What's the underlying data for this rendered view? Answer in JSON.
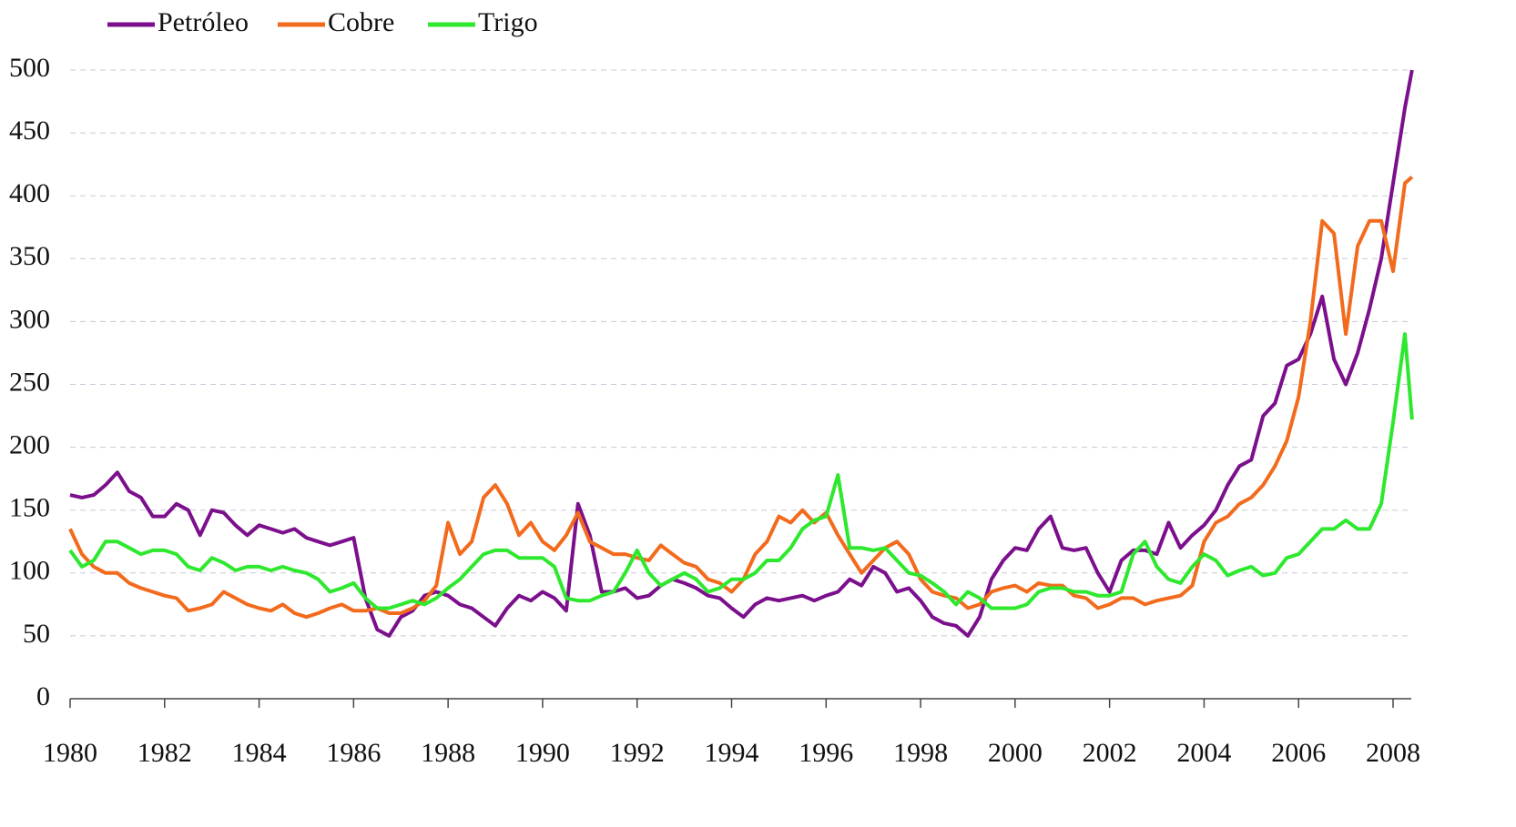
{
  "chart_data": {
    "type": "line",
    "x": [
      1980,
      1980.25,
      1980.5,
      1980.75,
      1981,
      1981.25,
      1981.5,
      1981.75,
      1982,
      1982.25,
      1982.5,
      1982.75,
      1983,
      1983.25,
      1983.5,
      1983.75,
      1984,
      1984.25,
      1984.5,
      1984.75,
      1985,
      1985.25,
      1985.5,
      1985.75,
      1986,
      1986.25,
      1986.5,
      1986.75,
      1987,
      1987.25,
      1987.5,
      1987.75,
      1988,
      1988.25,
      1988.5,
      1988.75,
      1989,
      1989.25,
      1989.5,
      1989.75,
      1990,
      1990.25,
      1990.5,
      1990.75,
      1991,
      1991.25,
      1991.5,
      1991.75,
      1992,
      1992.25,
      1992.5,
      1992.75,
      1993,
      1993.25,
      1993.5,
      1993.75,
      1994,
      1994.25,
      1994.5,
      1994.75,
      1995,
      1995.25,
      1995.5,
      1995.75,
      1996,
      1996.25,
      1996.5,
      1996.75,
      1997,
      1997.25,
      1997.5,
      1997.75,
      1998,
      1998.25,
      1998.5,
      1998.75,
      1999,
      1999.25,
      1999.5,
      1999.75,
      2000,
      2000.25,
      2000.5,
      2000.75,
      2001,
      2001.25,
      2001.5,
      2001.75,
      2002,
      2002.25,
      2002.5,
      2002.75,
      2003,
      2003.25,
      2003.5,
      2003.75,
      2004,
      2004.25,
      2004.5,
      2004.75,
      2005,
      2005.25,
      2005.5,
      2005.75,
      2006,
      2006.25,
      2006.5,
      2006.75,
      2007,
      2007.25,
      2007.5,
      2007.75,
      2008,
      2008.25,
      2008.4
    ],
    "series": [
      {
        "name": "Petróleo",
        "color": "#7b0f8c",
        "values": [
          162,
          160,
          162,
          170,
          180,
          165,
          160,
          145,
          145,
          155,
          150,
          130,
          150,
          148,
          138,
          130,
          138,
          135,
          132,
          135,
          128,
          125,
          122,
          125,
          128,
          80,
          55,
          50,
          65,
          70,
          82,
          85,
          82,
          75,
          72,
          65,
          58,
          72,
          82,
          78,
          85,
          80,
          70,
          155,
          130,
          85,
          85,
          88,
          80,
          82,
          90,
          95,
          92,
          88,
          82,
          80,
          72,
          65,
          75,
          80,
          78,
          80,
          82,
          78,
          82,
          85,
          95,
          90,
          105,
          100,
          85,
          88,
          78,
          65,
          60,
          58,
          50,
          65,
          95,
          110,
          120,
          118,
          135,
          145,
          120,
          118,
          120,
          100,
          85,
          110,
          118,
          118,
          115,
          140,
          120,
          130,
          138,
          150,
          170,
          185,
          190,
          225,
          235,
          265,
          270,
          290,
          320,
          270,
          250,
          275,
          310,
          350,
          410,
          470,
          500
        ]
      },
      {
        "name": "Cobre",
        "color": "#f26b1d",
        "values": [
          135,
          115,
          105,
          100,
          100,
          92,
          88,
          85,
          82,
          80,
          70,
          72,
          75,
          85,
          80,
          75,
          72,
          70,
          75,
          68,
          65,
          68,
          72,
          75,
          70,
          70,
          72,
          68,
          68,
          72,
          78,
          90,
          140,
          115,
          125,
          160,
          170,
          155,
          130,
          140,
          125,
          118,
          130,
          148,
          125,
          120,
          115,
          115,
          112,
          110,
          122,
          115,
          108,
          105,
          95,
          92,
          85,
          95,
          115,
          125,
          145,
          140,
          150,
          140,
          148,
          130,
          115,
          100,
          110,
          120,
          125,
          115,
          95,
          85,
          82,
          80,
          72,
          75,
          85,
          88,
          90,
          85,
          92,
          90,
          90,
          82,
          80,
          72,
          75,
          80,
          80,
          75,
          78,
          80,
          82,
          90,
          125,
          140,
          145,
          155,
          160,
          170,
          185,
          205,
          240,
          300,
          380,
          370,
          290,
          360,
          380,
          380,
          340,
          410,
          415
        ]
      },
      {
        "name": "Trigo",
        "color": "#2ee82e",
        "values": [
          118,
          105,
          110,
          125,
          125,
          120,
          115,
          118,
          118,
          115,
          105,
          102,
          112,
          108,
          102,
          105,
          105,
          102,
          105,
          102,
          100,
          95,
          85,
          88,
          92,
          80,
          72,
          72,
          75,
          78,
          75,
          80,
          88,
          95,
          105,
          115,
          118,
          118,
          112,
          112,
          112,
          105,
          80,
          78,
          78,
          82,
          85,
          100,
          118,
          100,
          90,
          95,
          100,
          95,
          85,
          88,
          95,
          95,
          100,
          110,
          110,
          120,
          135,
          142,
          145,
          178,
          120,
          120,
          118,
          120,
          110,
          100,
          98,
          92,
          85,
          75,
          85,
          80,
          72,
          72,
          72,
          75,
          85,
          88,
          88,
          85,
          85,
          82,
          82,
          85,
          115,
          125,
          105,
          95,
          92,
          105,
          115,
          110,
          98,
          102,
          105,
          98,
          100,
          112,
          115,
          125,
          135,
          135,
          142,
          135,
          135,
          155,
          220,
          290,
          222
        ]
      }
    ],
    "xlim": [
      1980,
      2008.4
    ],
    "xticks": [
      1980,
      1982,
      1984,
      1986,
      1988,
      1990,
      1992,
      1994,
      1996,
      1998,
      2000,
      2002,
      2004,
      2006,
      2008
    ],
    "ylim": [
      0,
      500
    ],
    "yticks": [
      0,
      50,
      100,
      150,
      200,
      250,
      300,
      350,
      400,
      450,
      500
    ],
    "grid": true,
    "legend": "top-left"
  }
}
